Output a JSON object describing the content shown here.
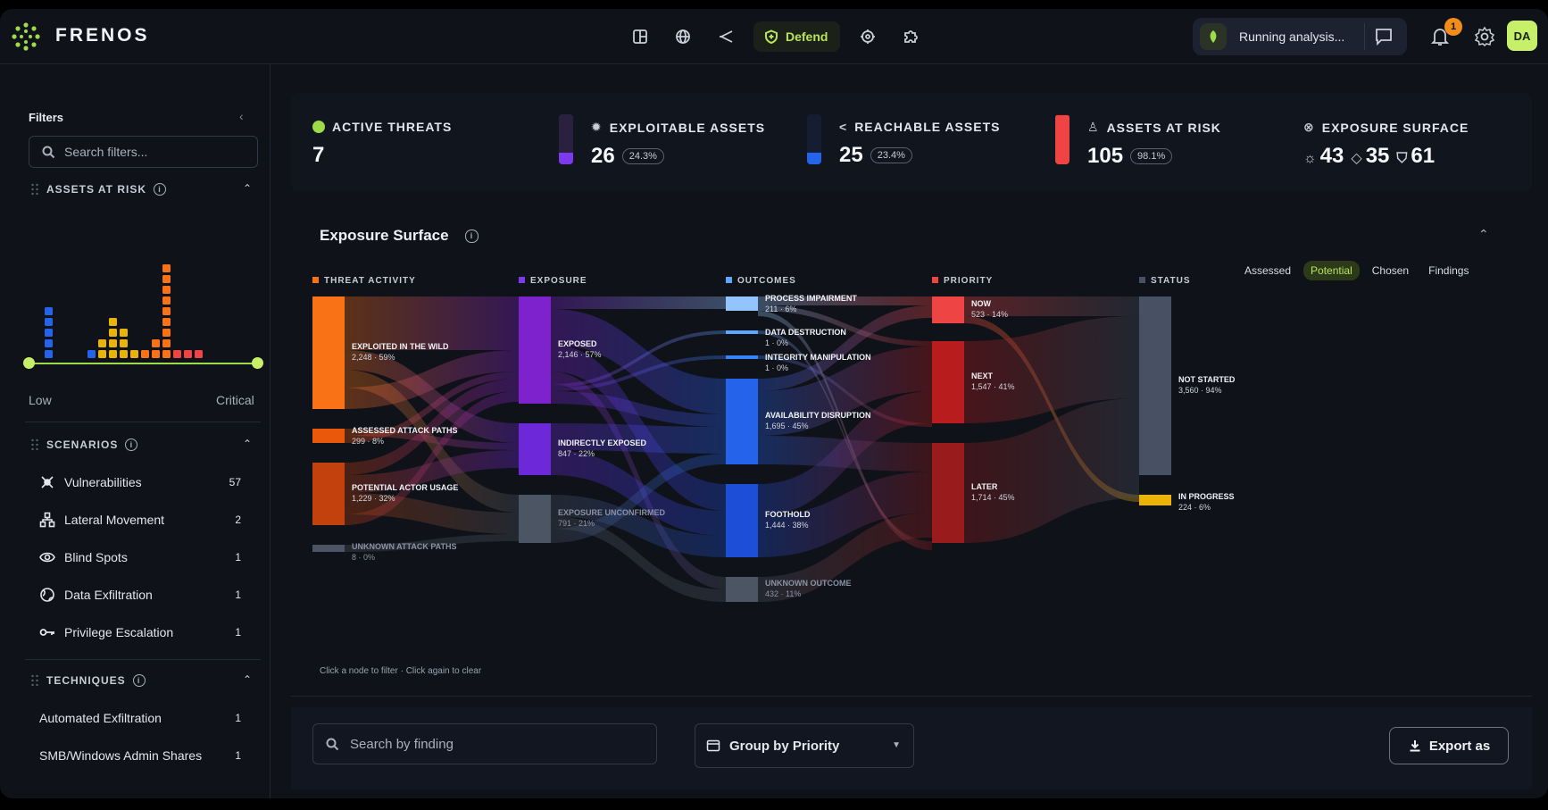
{
  "app": {
    "brand": "FRENOS"
  },
  "nav": {
    "defend_label": "Defend"
  },
  "status": {
    "running_label": "Running analysis...",
    "notification_count": "1",
    "avatar_initials": "DA"
  },
  "sidebar": {
    "title": "Filters",
    "search_placeholder": "Search filters...",
    "assets_at_risk": {
      "title": "ASSETS AT RISK",
      "low_label": "Low",
      "critical_label": "Critical"
    },
    "scenarios": {
      "title": "SCENARIOS",
      "items": [
        {
          "label": "Vulnerabilities",
          "count": "57"
        },
        {
          "label": "Lateral Movement",
          "count": "2"
        },
        {
          "label": "Blind Spots",
          "count": "1"
        },
        {
          "label": "Data Exfiltration",
          "count": "1"
        },
        {
          "label": "Privilege Escalation",
          "count": "1"
        }
      ]
    },
    "techniques": {
      "title": "TECHNIQUES",
      "items": [
        {
          "label": "Automated Exfiltration",
          "count": "1"
        },
        {
          "label": "SMB/Windows Admin Shares",
          "count": "1"
        }
      ]
    }
  },
  "stats": {
    "active_threats": {
      "label": "ACTIVE THREATS",
      "value": "7"
    },
    "exploitable_assets": {
      "label": "EXPLOITABLE ASSETS",
      "value": "26",
      "pct": "24.3%"
    },
    "reachable_assets": {
      "label": "REACHABLE ASSETS",
      "value": "25",
      "pct": "23.4%"
    },
    "assets_at_risk": {
      "label": "ASSETS AT RISK",
      "value": "105",
      "pct": "98.1%"
    },
    "exposure_surface": {
      "label": "EXPOSURE SURFACE",
      "v1": "43",
      "v2": "35",
      "v3": "61"
    }
  },
  "panel": {
    "title": "Exposure Surface",
    "toggles": [
      "Assessed",
      "Potential",
      "Chosen",
      "Findings"
    ],
    "active_toggle": "Potential",
    "hint": "Click a node to filter · Click again to clear",
    "columns": [
      "THREAT ACTIVITY",
      "EXPOSURE",
      "OUTCOMES",
      "PRIORITY",
      "STATUS"
    ],
    "column_colors": [
      "#f97316",
      "#7c3aed",
      "#60a5fa",
      "#ef4444",
      "#475163"
    ],
    "nodes": [
      {
        "col": 0,
        "name": "EXPLOITED IN THE WILD",
        "stat": "2,248 · 59%",
        "color": "#f97316"
      },
      {
        "col": 0,
        "name": "ASSESSED ATTACK PATHS",
        "stat": "299 · 8%",
        "color": "#ea580c"
      },
      {
        "col": 0,
        "name": "POTENTIAL ACTOR USAGE",
        "stat": "1,229 · 32%",
        "color": "#c2410c"
      },
      {
        "col": 0,
        "name": "UNKNOWN ATTACK PATHS",
        "stat": "8 · 0%",
        "color": "#4b5563"
      },
      {
        "col": 1,
        "name": "EXPOSED",
        "stat": "2,146 · 57%",
        "color": "#7e22ce"
      },
      {
        "col": 1,
        "name": "INDIRECTLY EXPOSED",
        "stat": "847 · 22%",
        "color": "#6d28d9"
      },
      {
        "col": 1,
        "name": "EXPOSURE UNCONFIRMED",
        "stat": "791 · 21%",
        "color": "#4b5563"
      },
      {
        "col": 2,
        "name": "PROCESS IMPAIRMENT",
        "stat": "211 · 6%",
        "color": "#93c5fd"
      },
      {
        "col": 2,
        "name": "DATA DESTRUCTION",
        "stat": "1 · 0%",
        "color": "#60a5fa"
      },
      {
        "col": 2,
        "name": "INTEGRITY MANIPULATION",
        "stat": "1 · 0%",
        "color": "#3b82f6"
      },
      {
        "col": 2,
        "name": "AVAILABILITY DISRUPTION",
        "stat": "1,695 · 45%",
        "color": "#2563eb"
      },
      {
        "col": 2,
        "name": "FOOTHOLD",
        "stat": "1,444 · 38%",
        "color": "#1d4ed8"
      },
      {
        "col": 2,
        "name": "UNKNOWN OUTCOME",
        "stat": "432 · 11%",
        "color": "#4b5563"
      },
      {
        "col": 3,
        "name": "NOW",
        "stat": "523 · 14%",
        "color": "#ef4444"
      },
      {
        "col": 3,
        "name": "NEXT",
        "stat": "1,547 · 41%",
        "color": "#b91c1c"
      },
      {
        "col": 3,
        "name": "LATER",
        "stat": "1,714 · 45%",
        "color": "#991b1b"
      },
      {
        "col": 4,
        "name": "NOT STARTED",
        "stat": "3,560 · 94%",
        "color": "#475163"
      },
      {
        "col": 4,
        "name": "IN PROGRESS",
        "stat": "224 · 6%",
        "color": "#eab308"
      }
    ]
  },
  "bottom": {
    "search_placeholder": "Search by finding",
    "group_label": "Group by Priority",
    "export_label": "Export as"
  }
}
